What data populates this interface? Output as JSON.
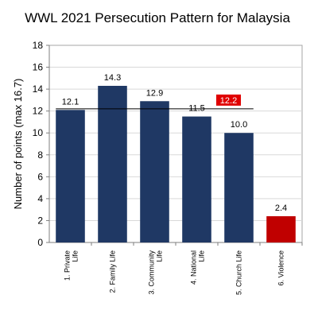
{
  "chart_data": {
    "type": "bar",
    "title": "WWL 2021 Persecution Pattern for Malaysia",
    "ylabel": "Number of points (max 16.7)",
    "xlabel": "",
    "ylim": [
      0,
      18
    ],
    "yticks": [
      0,
      2,
      4,
      6,
      8,
      10,
      12,
      14,
      16,
      18
    ],
    "grid": true,
    "categories": [
      "1. Private Life",
      "2. Family Life",
      "3. Community Life",
      "4. National Life",
      "5. Church Life",
      "6. Violence"
    ],
    "values": [
      12.1,
      14.3,
      12.9,
      11.5,
      10.0,
      2.4
    ],
    "value_labels": [
      "12.1",
      "14.3",
      "12.9",
      "11.5",
      "10.0",
      "2.4"
    ],
    "bar_colors": [
      "#1f3864",
      "#1f3864",
      "#1f3864",
      "#1f3864",
      "#1f3864",
      "#c00000"
    ],
    "average": {
      "value": 12.2,
      "label": "12.2",
      "color": "#e00000"
    }
  }
}
